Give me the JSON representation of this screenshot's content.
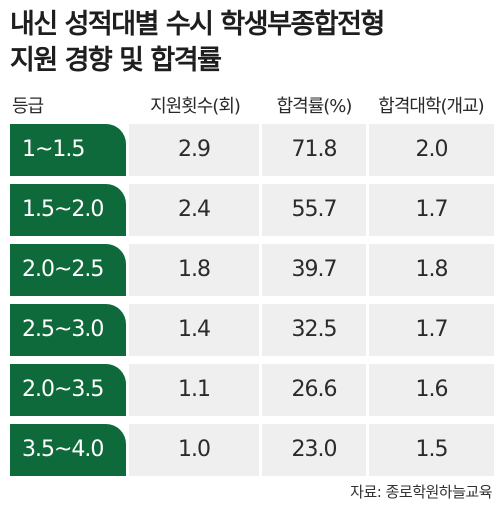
{
  "title_line1": "내신 성적대별 수시 학생부종합전형",
  "title_line2": "지원 경향 및 합격률",
  "source": "자료: 종로학원하늘교육",
  "chart_data": {
    "type": "table",
    "columns": [
      "등급",
      "지원횟수(회)",
      "합격률(%)",
      "합격대학(개교)"
    ],
    "rows": [
      {
        "grade": "1~1.5",
        "applications": "2.9",
        "pass_rate": "71.8",
        "universities": "2.0"
      },
      {
        "grade": "1.5~2.0",
        "applications": "2.4",
        "pass_rate": "55.7",
        "universities": "1.7"
      },
      {
        "grade": "2.0~2.5",
        "applications": "1.8",
        "pass_rate": "39.7",
        "universities": "1.8"
      },
      {
        "grade": "2.5~3.0",
        "applications": "1.4",
        "pass_rate": "32.5",
        "universities": "1.7"
      },
      {
        "grade": "2.0~3.5",
        "applications": "1.1",
        "pass_rate": "26.6",
        "universities": "1.6"
      },
      {
        "grade": "3.5~4.0",
        "applications": "1.0",
        "pass_rate": "23.0",
        "universities": "1.5"
      }
    ]
  },
  "colors": {
    "grade_bg": "#0f6a3b",
    "cell_bg": "#efefef"
  }
}
